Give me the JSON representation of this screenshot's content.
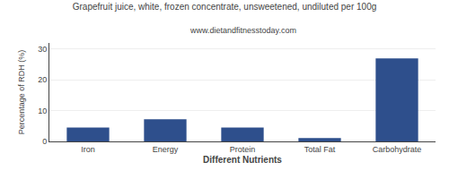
{
  "chart_data": {
    "type": "bar",
    "title": "Grapefruit juice, white, frozen concentrate, unsweetened, undiluted per 100g",
    "subtitle": "www.dietandfitnesstoday.com",
    "xlabel": "Different Nutrients",
    "ylabel": "Percentage of RDH (%)",
    "categories": [
      "Iron",
      "Energy",
      "Protein",
      "Total Fat",
      "Carbohydrate"
    ],
    "values": [
      4.5,
      7.2,
      4.5,
      1.1,
      27.0
    ],
    "color": "#2e4f8c",
    "ylim": [
      0,
      32
    ],
    "yticks": [
      0,
      10,
      20,
      30
    ],
    "grid": true
  }
}
